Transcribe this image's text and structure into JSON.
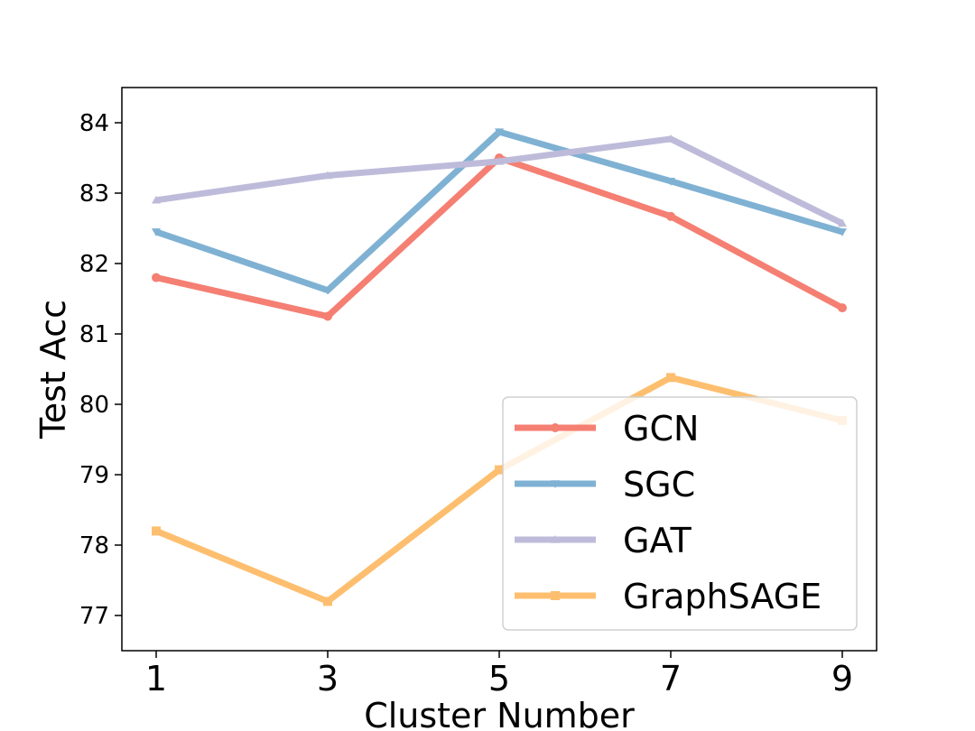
{
  "chart_data": {
    "type": "line",
    "title": "",
    "xlabel": "Cluster Number",
    "ylabel": "Test Acc",
    "x": [
      1,
      3,
      5,
      7,
      9
    ],
    "xticks": [
      "1",
      "3",
      "5",
      "7",
      "9"
    ],
    "yticks": [
      "77",
      "78",
      "79",
      "80",
      "81",
      "82",
      "83",
      "84"
    ],
    "xlim": [
      0.6,
      9.4
    ],
    "ylim": [
      76.5,
      84.5
    ],
    "grid": false,
    "legend_position": "lower-right",
    "series": [
      {
        "name": "GCN",
        "color": "#f47f72",
        "marker": "circle",
        "values": [
          81.8,
          81.25,
          83.5,
          82.67,
          81.37
        ]
      },
      {
        "name": "SGC",
        "color": "#7fb1d3",
        "marker": "triangle-down",
        "values": [
          82.45,
          81.62,
          83.87,
          83.17,
          82.45
        ]
      },
      {
        "name": "GAT",
        "color": "#bebbda",
        "marker": "triangle-up",
        "values": [
          82.9,
          83.25,
          83.45,
          83.77,
          82.57
        ]
      },
      {
        "name": "GraphSAGE",
        "color": "#fdbf6f",
        "marker": "square",
        "values": [
          78.2,
          77.2,
          79.07,
          80.38,
          79.77
        ]
      }
    ]
  }
}
